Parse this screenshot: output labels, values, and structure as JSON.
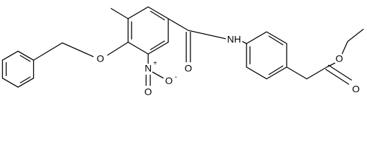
{
  "atoms": [
    {
      "label": "O"
    },
    {
      "label": "N",
      "charge": "+"
    },
    {
      "label": "O",
      "charge": "-"
    },
    {
      "label": "O"
    },
    {
      "label": "O"
    },
    {
      "label": "NH"
    },
    {
      "label": "O"
    },
    {
      "label": "O"
    }
  ]
}
